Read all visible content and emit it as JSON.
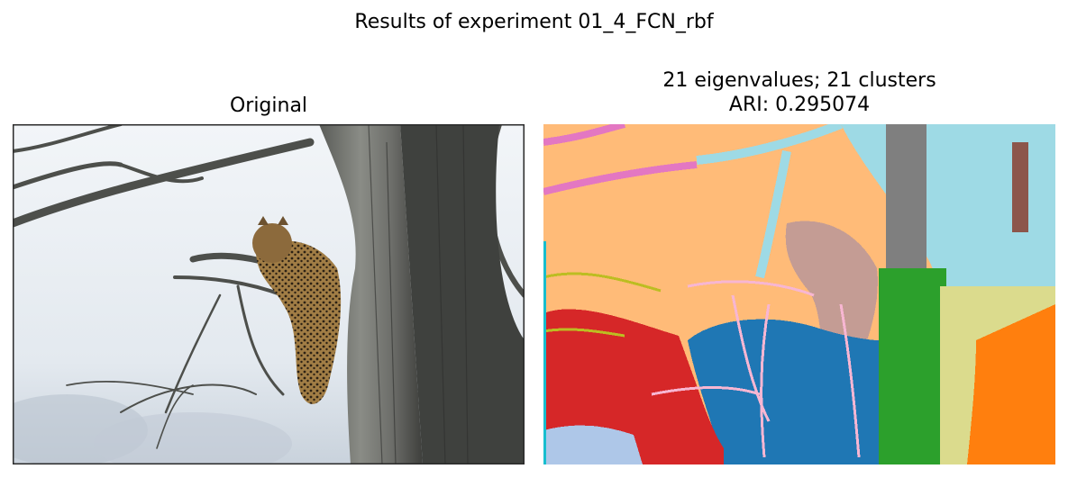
{
  "figure": {
    "suptitle": "Results of experiment 01_4_FCN_rbf"
  },
  "panels": [
    {
      "title_lines": [
        "Original"
      ],
      "image": "photo of a leopard resting on a tree branch"
    },
    {
      "title_lines": [
        "21 eigenvalues; 21 clusters",
        "ARI: 0.295074"
      ],
      "image": "segmentation map with 21 colored clusters"
    }
  ],
  "colors": {
    "sky_orig": "#e8eef3",
    "bark_dark": "#4a4a48",
    "bark_mid": "#7a7c78",
    "leopard": "#8c6a3c",
    "seg_sky": "#ffbb78",
    "seg_lightblue": "#9edae5",
    "seg_blue": "#1f77b4",
    "seg_red": "#d62728",
    "seg_green": "#2ca02c",
    "seg_orange": "#ff7f0e",
    "seg_gray": "#7f7f7f",
    "seg_pink": "#e377c2",
    "seg_tan": "#c49c94",
    "seg_olive": "#bcbd22",
    "seg_khaki": "#dbdb8d",
    "seg_periwinkle": "#aec7e8",
    "seg_rose": "#f7b6d2",
    "seg_brown": "#8c564b"
  }
}
